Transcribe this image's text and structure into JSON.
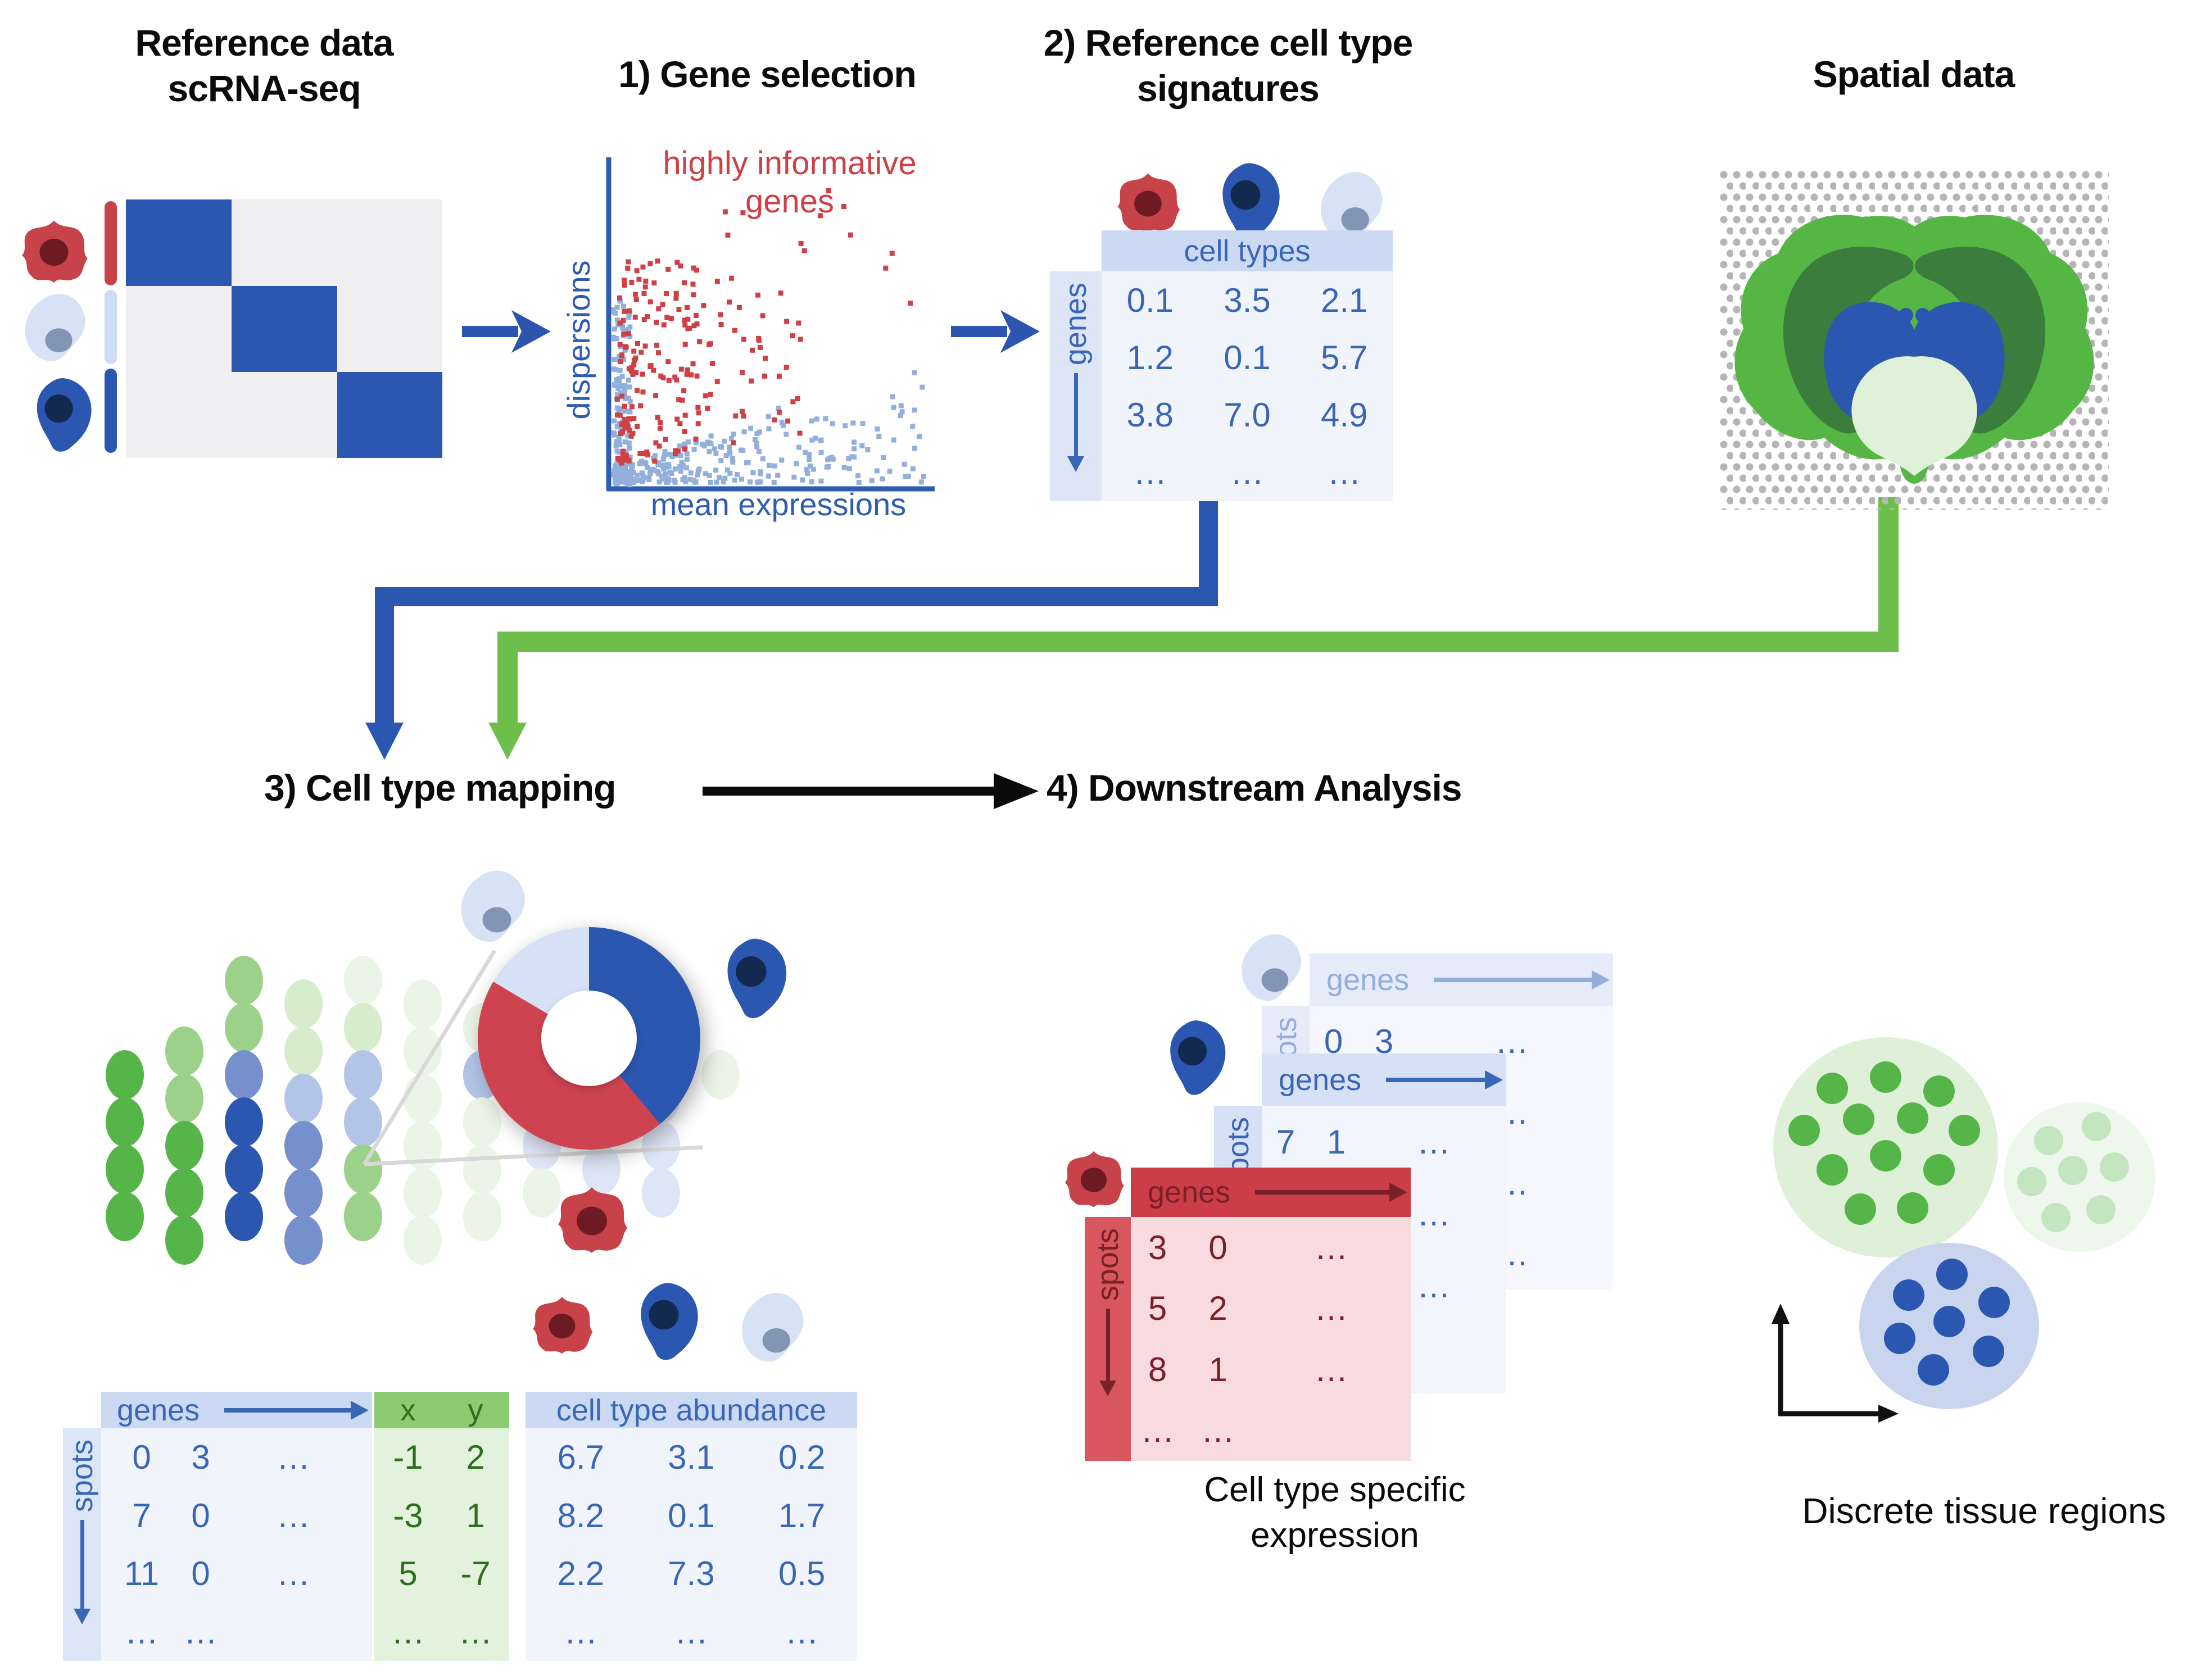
{
  "titles": {
    "reference_line1": "Reference data",
    "reference_line2": "scRNA-seq",
    "step1": "1) Gene selection",
    "step2_line1": "2) Reference cell type",
    "step2_line2": "signatures",
    "spatial": "Spatial data",
    "step3": "3) Cell type mapping",
    "step4": "4) Downstream Analysis"
  },
  "scatter": {
    "annotation_line1": "highly informative",
    "annotation_line2": "genes",
    "ylabel": "dispersions",
    "xlabel": "mean expressions"
  },
  "signatures": {
    "header": "cell types",
    "side_label": "genes",
    "rows": [
      [
        "0.1",
        "3.5",
        "2.1"
      ],
      [
        "1.2",
        "0.1",
        "5.7"
      ],
      [
        "3.8",
        "7.0",
        "4.9"
      ],
      [
        "…",
        "…",
        "…"
      ]
    ]
  },
  "mapping_tables": {
    "genes": {
      "header": "genes",
      "side_label": "spots",
      "rows": [
        [
          "0",
          "3",
          "…"
        ],
        [
          "7",
          "0",
          "…"
        ],
        [
          "11",
          "0",
          "…"
        ],
        [
          "…",
          "…",
          ""
        ]
      ]
    },
    "coords": {
      "col_x": "x",
      "col_y": "y",
      "rows": [
        [
          "-1",
          "2"
        ],
        [
          "-3",
          "1"
        ],
        [
          "5",
          "-7"
        ],
        [
          "…",
          "…"
        ]
      ]
    },
    "abundance": {
      "header": "cell type abundance",
      "rows": [
        [
          "6.7",
          "3.1",
          "0.2"
        ],
        [
          "8.2",
          "0.1",
          "1.7"
        ],
        [
          "2.2",
          "7.3",
          "0.5"
        ],
        [
          "…",
          "…",
          "…"
        ]
      ]
    }
  },
  "expression_tables": {
    "back": {
      "header": "genes",
      "side_label": "spots",
      "rows": [
        [
          "0",
          "3",
          "…"
        ],
        [
          "",
          "",
          "…"
        ],
        [
          "",
          "",
          "…"
        ],
        [
          "",
          "",
          "…"
        ]
      ]
    },
    "middle": {
      "header": "genes",
      "side_label": "spots",
      "rows": [
        [
          "7",
          "1",
          "…"
        ],
        [
          "",
          "",
          "…"
        ],
        [
          "",
          "",
          "…"
        ],
        [
          "",
          "",
          ""
        ]
      ]
    },
    "front": {
      "header": "genes",
      "side_label": "spots",
      "rows": [
        [
          "3",
          "0",
          "…"
        ],
        [
          "5",
          "2",
          "…"
        ],
        [
          "8",
          "1",
          "…"
        ],
        [
          "…",
          "…",
          ""
        ]
      ]
    },
    "caption_line1": "Cell type specific",
    "caption_line2": "expression"
  },
  "regions": {
    "caption": "Discrete tissue regions"
  },
  "donut": {
    "segments": [
      {
        "name": "blue-cell-fraction",
        "pct": 39,
        "color": "#2B57B0"
      },
      {
        "name": "red-cell-fraction",
        "pct": 44.5,
        "color": "#CE4350"
      },
      {
        "name": "lightblue-cell-fraction",
        "pct": 16.5,
        "color": "#D7E1F6"
      }
    ]
  },
  "spot_grid": {
    "palette": {
      "G": "#56B548",
      "g": "#9CD189",
      "p": "#D7ECCB",
      "e": "#EBF5E7",
      "B": "#2B57B0",
      "b": "#7590CD",
      "l": "#B3C4E9",
      "P": "#DEE5F6"
    },
    "rows": [
      "..gpee.eee.",
      ".ggppeeeee.",
      "GgbllelPePe",
      "GGBbleePPP.",
      "GGBbgeeePP.",
      "GGBbgee.P.."
    ]
  },
  "colors": {
    "blue": "#2B57B0",
    "red_cell": "#C8424A",
    "maroon": "#6E1A22",
    "light_blue_cell": "#D8E2F5",
    "cell_gray_nucleus": "#8395B5",
    "navy_nucleus": "#13294F",
    "green_arrow": "#6DBE4B",
    "bright_green": "#55B643",
    "dark_green": "#3B7D3C",
    "pale_green": "#DFF1D8",
    "gray_dot": "#B5B5B5",
    "table_blue_text": "#3A66B6",
    "green_text": "#2F6E20",
    "maroon_text": "#7A2028",
    "scatter_blue_pt": "#93AFDC",
    "scatter_red_pt": "#CF4046"
  }
}
